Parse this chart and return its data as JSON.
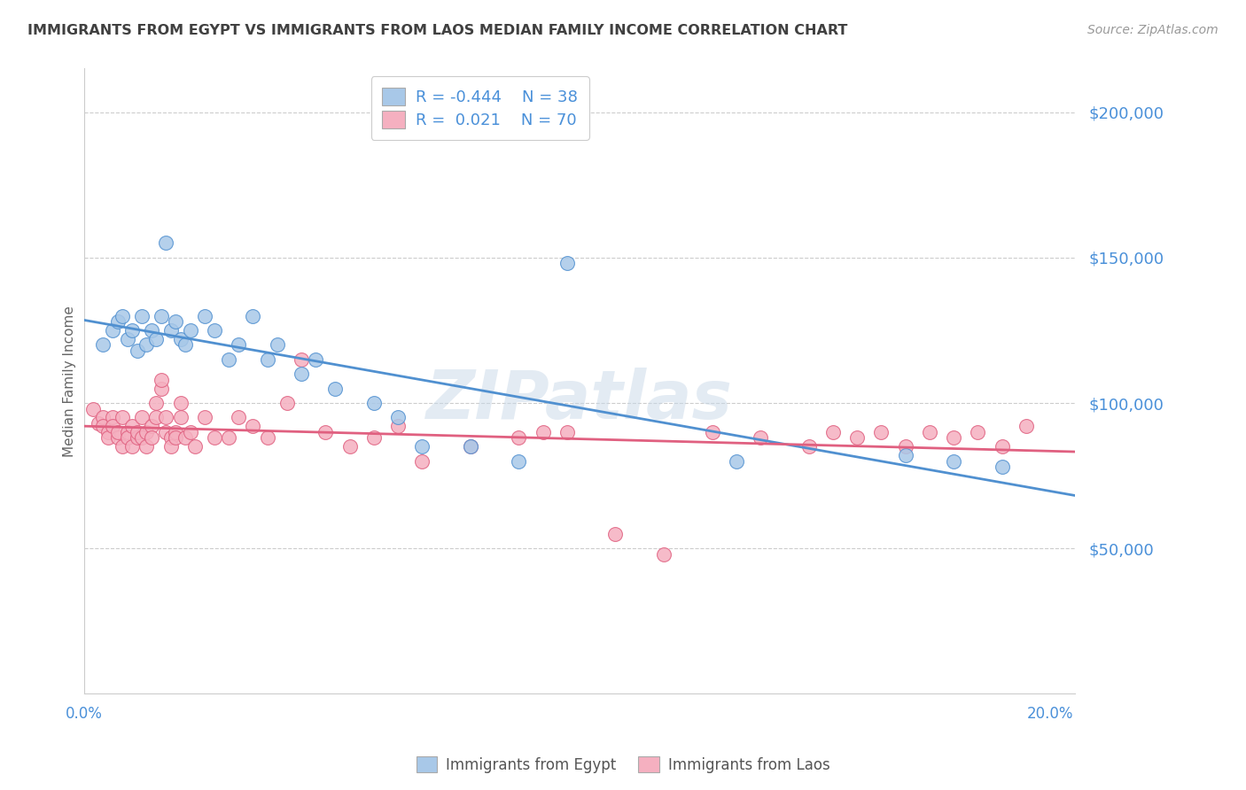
{
  "title": "IMMIGRANTS FROM EGYPT VS IMMIGRANTS FROM LAOS MEDIAN FAMILY INCOME CORRELATION CHART",
  "source": "Source: ZipAtlas.com",
  "ylabel": "Median Family Income",
  "y_tick_labels": [
    "$50,000",
    "$100,000",
    "$150,000",
    "$200,000"
  ],
  "y_tick_values": [
    50000,
    100000,
    150000,
    200000
  ],
  "ylim": [
    0,
    215000
  ],
  "xlim": [
    0.0,
    0.205
  ],
  "legend_egypt_r": "R = -0.444",
  "legend_egypt_n": "N = 38",
  "legend_laos_r": "R =  0.021",
  "legend_laos_n": "N = 70",
  "egypt_color": "#a8c8e8",
  "laos_color": "#f5b0c0",
  "egypt_line_color": "#5090d0",
  "laos_line_color": "#e06080",
  "watermark": "ZIPatlas",
  "watermark_color": "#c8d8e8",
  "background_color": "#ffffff",
  "grid_color": "#cccccc",
  "title_color": "#404040",
  "label_color": "#4a90d9",
  "egypt_scatter_x": [
    0.004,
    0.006,
    0.007,
    0.008,
    0.009,
    0.01,
    0.011,
    0.012,
    0.013,
    0.014,
    0.015,
    0.016,
    0.017,
    0.018,
    0.019,
    0.02,
    0.021,
    0.022,
    0.025,
    0.027,
    0.03,
    0.032,
    0.035,
    0.038,
    0.04,
    0.045,
    0.048,
    0.052,
    0.06,
    0.065,
    0.07,
    0.08,
    0.09,
    0.1,
    0.135,
    0.17,
    0.18,
    0.19
  ],
  "egypt_scatter_y": [
    120000,
    125000,
    128000,
    130000,
    122000,
    125000,
    118000,
    130000,
    120000,
    125000,
    122000,
    130000,
    155000,
    125000,
    128000,
    122000,
    120000,
    125000,
    130000,
    125000,
    115000,
    120000,
    130000,
    115000,
    120000,
    110000,
    115000,
    105000,
    100000,
    95000,
    85000,
    85000,
    80000,
    148000,
    80000,
    82000,
    80000,
    78000
  ],
  "laos_scatter_x": [
    0.002,
    0.003,
    0.004,
    0.004,
    0.005,
    0.005,
    0.006,
    0.006,
    0.007,
    0.007,
    0.008,
    0.008,
    0.009,
    0.009,
    0.01,
    0.01,
    0.011,
    0.011,
    0.012,
    0.012,
    0.013,
    0.013,
    0.014,
    0.014,
    0.015,
    0.015,
    0.016,
    0.016,
    0.017,
    0.017,
    0.018,
    0.018,
    0.019,
    0.019,
    0.02,
    0.02,
    0.021,
    0.022,
    0.023,
    0.025,
    0.027,
    0.03,
    0.032,
    0.035,
    0.038,
    0.042,
    0.045,
    0.05,
    0.055,
    0.06,
    0.065,
    0.07,
    0.08,
    0.09,
    0.095,
    0.1,
    0.11,
    0.12,
    0.13,
    0.14,
    0.15,
    0.155,
    0.16,
    0.165,
    0.17,
    0.175,
    0.18,
    0.185,
    0.19,
    0.195
  ],
  "laos_scatter_y": [
    98000,
    93000,
    95000,
    92000,
    90000,
    88000,
    95000,
    92000,
    88000,
    90000,
    95000,
    85000,
    90000,
    88000,
    92000,
    85000,
    88000,
    90000,
    95000,
    88000,
    90000,
    85000,
    92000,
    88000,
    95000,
    100000,
    105000,
    108000,
    95000,
    90000,
    88000,
    85000,
    90000,
    88000,
    95000,
    100000,
    88000,
    90000,
    85000,
    95000,
    88000,
    88000,
    95000,
    92000,
    88000,
    100000,
    115000,
    90000,
    85000,
    88000,
    92000,
    80000,
    85000,
    88000,
    90000,
    90000,
    55000,
    48000,
    90000,
    88000,
    85000,
    90000,
    88000,
    90000,
    85000,
    90000,
    88000,
    90000,
    85000,
    92000
  ]
}
